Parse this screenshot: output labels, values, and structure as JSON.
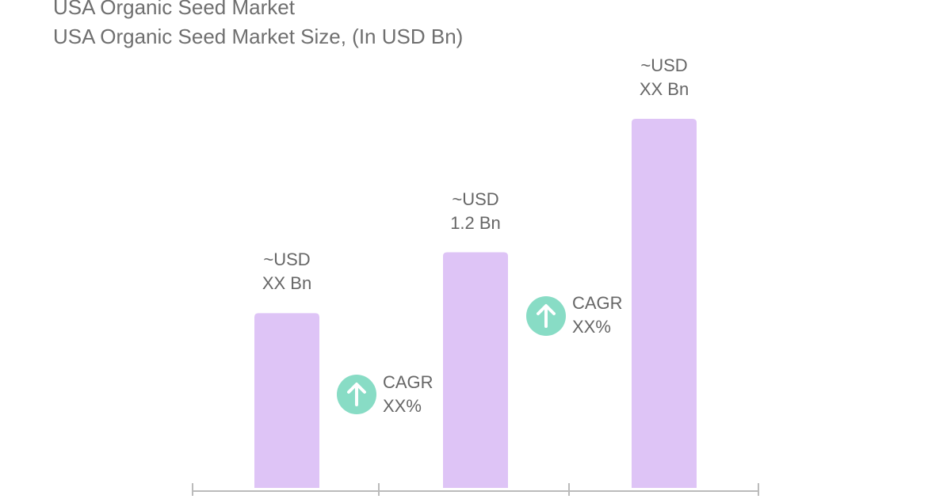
{
  "chart_data": {
    "type": "bar",
    "title": "USA Organic Seed Market",
    "subtitle": "USA Organic Seed Market Size, (In USD Bn)",
    "categories": [
      null,
      null,
      null
    ],
    "values": [
      0.89,
      1.2,
      1.88
    ],
    "value_labels": [
      "~USD\nXX Bn",
      "~USD\n1.2 Bn",
      "~USD\nXX Bn"
    ],
    "color": "#dec4f6",
    "annotations": [
      "CAGR\nXX%",
      "CAGR\nXX%"
    ]
  }
}
